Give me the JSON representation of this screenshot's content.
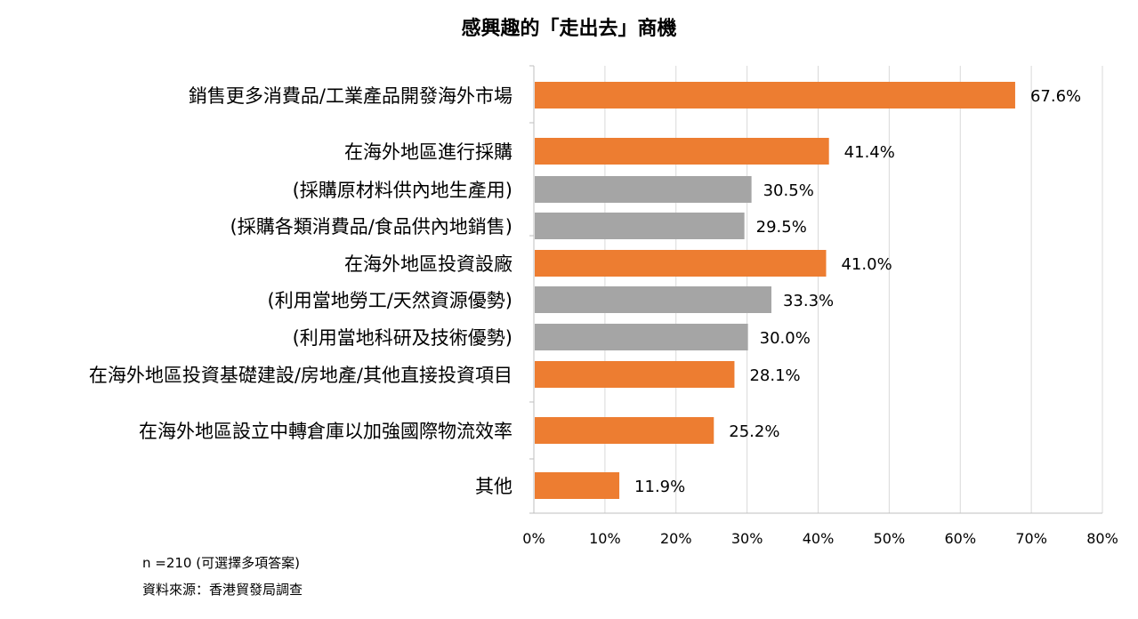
{
  "chart_data": {
    "type": "bar",
    "orientation": "horizontal",
    "title": "感興趣的「走出去」商機",
    "categories": [
      "銷售更多消費品/工業產品開發海外市場",
      "在海外地區進行採購",
      "(採購原材料供內地生產用)",
      "(採購各類消費品/食品供內地銷售)",
      "在海外地區投資設廠",
      "(利用當地勞工/天然資源優勢)",
      "(利用當地科研及技術優勢)",
      "在海外地區投資基礎建設/房地產/其他直接投資項目",
      "在海外地區設立中轉倉庫以加強國際物流效率",
      "其他"
    ],
    "values": [
      67.6,
      41.4,
      30.5,
      29.5,
      41.0,
      33.3,
      30.0,
      28.1,
      25.2,
      11.9
    ],
    "value_labels": [
      "67.6%",
      "41.4%",
      "30.5%",
      "29.5%",
      "41.0%",
      "33.3%",
      "30.0%",
      "28.1%",
      "25.2%",
      "11.9%"
    ],
    "bar_kind": [
      "main",
      "main",
      "sub",
      "sub",
      "main",
      "sub",
      "sub",
      "main",
      "main",
      "main"
    ],
    "xlim": [
      0,
      80
    ],
    "xticks": [
      "0%",
      "10%",
      "20%",
      "30%",
      "40%",
      "50%",
      "60%",
      "70%",
      "80%"
    ],
    "grid": true,
    "colors": {
      "main": "#ED7D31",
      "sub": "#A5A5A5",
      "grid": "#D9D9D9",
      "axis": "#BFBFBF"
    }
  },
  "notes": {
    "sample": "n =210 (可選擇多項答案)",
    "source": "資料來源：香港貿發局調查"
  }
}
